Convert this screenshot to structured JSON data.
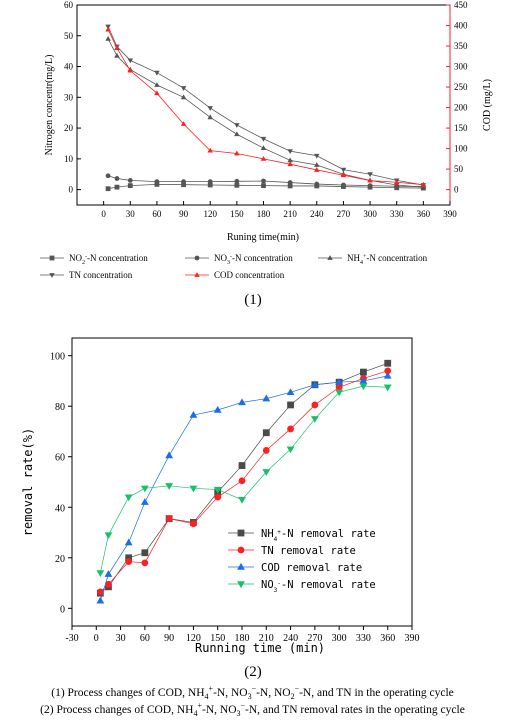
{
  "colors": {
    "gray": "#555555",
    "red": "#ff2020",
    "blue": "#1a6fe6",
    "green": "#19c06a",
    "darkgray": "#4a4a4a"
  },
  "chart_data": [
    {
      "type": "line",
      "panel_label": "(1)",
      "xlabel": "Runing time(min)",
      "ylabel_left": "Nitrogen concentr(mg/L)",
      "ylabel_right": "COD (mg/L)",
      "xlim": [
        -30,
        390
      ],
      "ylim_left": [
        -5,
        60
      ],
      "ylim_right": [
        -37.5,
        450
      ],
      "x_ticks": [
        0,
        30,
        60,
        90,
        120,
        150,
        180,
        210,
        240,
        270,
        300,
        330,
        360,
        390
      ],
      "y_left_ticks": [
        0,
        10,
        20,
        30,
        40,
        50,
        60
      ],
      "y_right_ticks": [
        0,
        50,
        100,
        150,
        200,
        250,
        300,
        350,
        400,
        450
      ],
      "series": [
        {
          "name": "NO2- -N concentration",
          "legend_html": "NO<tspan baseline-shift=\"sub\" font-size=\"6\">2</tspan><tspan baseline-shift=\"super\" font-size=\"6\">-</tspan>-N concentration",
          "axis": "left",
          "marker": "square",
          "color": "#555555",
          "x": [
            5,
            15,
            30,
            60,
            90,
            120,
            150,
            180,
            210,
            240,
            270,
            300,
            330,
            360
          ],
          "y": [
            0.3,
            0.8,
            1.3,
            1.7,
            1.6,
            1.5,
            1.4,
            1.3,
            1.2,
            1.2,
            1.0,
            0.8,
            0.6,
            0.5
          ]
        },
        {
          "name": "NO3- -N concentration",
          "legend_html": "NO<tspan baseline-shift=\"sub\" font-size=\"6\">3</tspan><tspan baseline-shift=\"super\" font-size=\"6\">-</tspan>-N concentration",
          "axis": "left",
          "marker": "circle",
          "color": "#555555",
          "x": [
            5,
            15,
            30,
            60,
            90,
            120,
            150,
            180,
            210,
            240,
            270,
            300,
            330,
            360
          ],
          "y": [
            4.5,
            3.6,
            3.0,
            2.6,
            2.6,
            2.6,
            2.7,
            2.8,
            2.3,
            1.8,
            1.5,
            1.3,
            1.1,
            1.0
          ]
        },
        {
          "name": "NH4+ -N concentration",
          "legend_html": "NH<tspan baseline-shift=\"sub\" font-size=\"6\">4</tspan><tspan baseline-shift=\"super\" font-size=\"6\">+</tspan>-N concentration",
          "axis": "left",
          "marker": "triangle-up",
          "color": "#555555",
          "x": [
            5,
            15,
            30,
            60,
            90,
            120,
            150,
            180,
            210,
            240,
            270,
            300,
            330,
            360
          ],
          "y": [
            49,
            43.5,
            39,
            34,
            30,
            23.5,
            18,
            13.5,
            9.5,
            8,
            5,
            3,
            1.5,
            0.8
          ]
        },
        {
          "name": "TN concentration",
          "legend_html": "TN concentration",
          "axis": "left",
          "marker": "triangle-down",
          "color": "#555555",
          "x": [
            5,
            15,
            30,
            60,
            90,
            120,
            150,
            180,
            210,
            240,
            270,
            300,
            330,
            360
          ],
          "y": [
            53,
            46.5,
            42,
            38,
            33,
            26.5,
            21,
            16.5,
            12.5,
            11,
            6.5,
            5,
            3,
            1.5
          ]
        },
        {
          "name": "COD concentration",
          "legend_html": "COD concentration",
          "axis": "right",
          "marker": "triangle-up",
          "color": "#ff2020",
          "x": [
            5,
            15,
            30,
            60,
            90,
            120,
            150,
            180,
            210,
            240,
            270,
            300,
            330,
            360
          ],
          "y": [
            390,
            345,
            290,
            235,
            160,
            95,
            88,
            75,
            62,
            48,
            35,
            22,
            18,
            12
          ]
        }
      ]
    },
    {
      "type": "line",
      "panel_label": "(2)",
      "xlabel": "Running time (min)",
      "ylabel": "removal rate(%)",
      "xlim": [
        -30,
        390
      ],
      "ylim": [
        -7,
        107
      ],
      "x_ticks": [
        -30,
        0,
        30,
        60,
        90,
        120,
        150,
        180,
        210,
        240,
        270,
        300,
        330,
        360,
        390
      ],
      "y_ticks": [
        0,
        20,
        40,
        60,
        80,
        100
      ],
      "series": [
        {
          "name": "NH4+-N removal rate",
          "legend_html": "NH<tspan baseline-shift=\"sub\" font-size=\"6\">4</tspan><tspan baseline-shift=\"super\" font-size=\"6\">+</tspan>-N removal rate",
          "marker": "square",
          "color": "#4a4a4a",
          "x": [
            5,
            15,
            40,
            60,
            90,
            120,
            150,
            180,
            210,
            240,
            270,
            300,
            330,
            360
          ],
          "y": [
            6,
            8.5,
            20,
            22,
            35.5,
            34,
            46,
            56.5,
            69.5,
            80.5,
            88.5,
            89.5,
            93.5,
            97
          ]
        },
        {
          "name": "TN removal rate",
          "legend_html": "TN removal rate",
          "marker": "circle",
          "color": "#ff2020",
          "x": [
            5,
            15,
            40,
            60,
            90,
            120,
            150,
            180,
            210,
            240,
            270,
            300,
            330,
            360
          ],
          "y": [
            6.5,
            9.5,
            18.5,
            18,
            35.5,
            33.5,
            44,
            50.5,
            62.5,
            71,
            80.5,
            87.5,
            91,
            94
          ]
        },
        {
          "name": "COD removal rate",
          "legend_html": "COD removal rate",
          "marker": "triangle-up",
          "color": "#1a6fe6",
          "x": [
            5,
            15,
            40,
            60,
            90,
            120,
            150,
            180,
            210,
            240,
            270,
            300,
            330,
            360
          ],
          "y": [
            3,
            13.5,
            26,
            42,
            60.5,
            76.5,
            78.5,
            81.5,
            83,
            85.5,
            88.5,
            89.5,
            90,
            92
          ]
        },
        {
          "name": "NO3--N removal rate",
          "legend_html": "NO<tspan baseline-shift=\"sub\" font-size=\"6\">3</tspan><tspan baseline-shift=\"super\" font-size=\"6\">-</tspan>-N removal rate",
          "marker": "triangle-down",
          "color": "#19c06a",
          "x": [
            5,
            15,
            40,
            60,
            90,
            120,
            150,
            180,
            210,
            240,
            270,
            300,
            330,
            360
          ],
          "y": [
            14,
            29,
            44,
            47.5,
            48.5,
            47.5,
            47,
            43,
            54,
            63,
            75,
            85.5,
            88,
            87.5
          ]
        }
      ]
    }
  ],
  "captions": [
    "(1) Process changes of COD, NH4+-N, NO3−-N, NO2−-N, and TN in the operating cycle",
    "(2) Process changes of COD, NH4+-N, NO3−-N, and TN removal rates in the operating cycle"
  ],
  "captions_html": [
    "(1) Process changes of COD, NH<sub style=\"font-size:8px\">4</sub><sup style=\"font-size:8px\">+</sup>-N, NO<sub style=\"font-size:8px\">3</sub><sup style=\"font-size:8px\">−</sup>-N, NO<sub style=\"font-size:8px\">2</sub><sup style=\"font-size:8px\">−</sup>-N, and TN in the operating cycle",
    "(2) Process changes of COD, NH<sub style=\"font-size:8px\">4</sub><sup style=\"font-size:8px\">+</sup>-N, NO<sub style=\"font-size:8px\">3</sub><sup style=\"font-size:8px\">−</sup>-N, and TN removal rates in the operating cycle"
  ]
}
